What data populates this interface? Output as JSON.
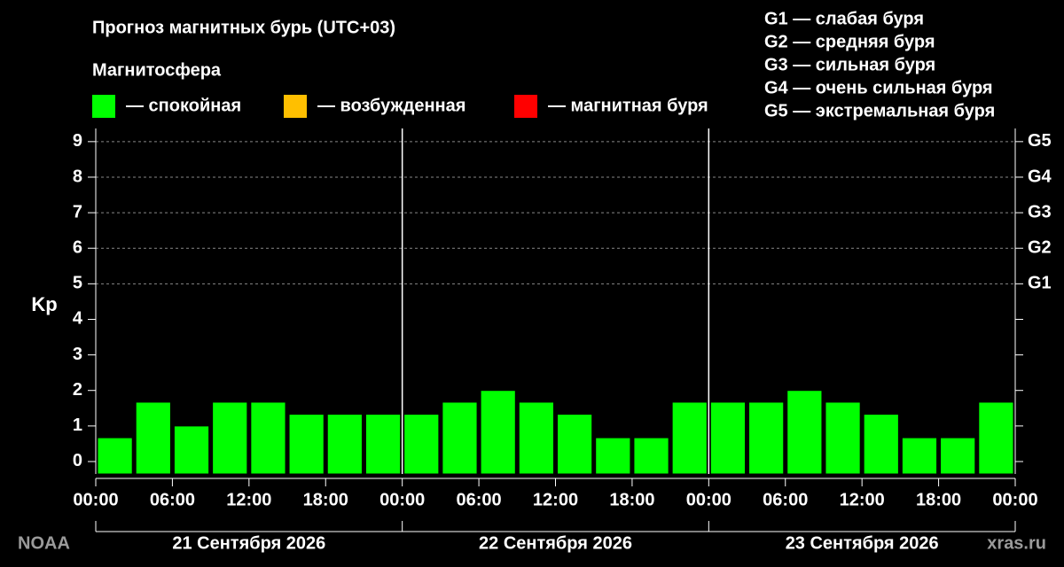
{
  "chart_data": {
    "type": "bar",
    "title": "Прогноз магнитных бурь (UTC+03)",
    "legend_title": "Магнитосфера",
    "legend": [
      {
        "label": "— спокойная",
        "color": "#00ff00"
      },
      {
        "label": "— возбужденная",
        "color": "#ffbf00"
      },
      {
        "label": "— магнитная буря",
        "color": "#ff0000"
      }
    ],
    "g_legend": [
      "G1 — слабая буря",
      "G2 — средняя буря",
      "G3 — сильная буря",
      "G4 — очень сильная буря",
      "G5 — экстремальная буря"
    ],
    "ylabel": "Kp",
    "color": "#00ff00",
    "values": [
      0.67,
      1.67,
      1,
      1.67,
      1.67,
      1.33,
      1.33,
      1.33,
      1.33,
      1.67,
      2,
      1.67,
      1.33,
      0.67,
      0.67,
      1.67,
      1.67,
      1.67,
      2,
      1.67,
      1.33,
      0.67,
      0.67,
      1.67
    ],
    "xlim": [
      0,
      72
    ],
    "xticks": [
      {
        "value": 0,
        "label": "00:00"
      },
      {
        "value": 6,
        "label": "06:00"
      },
      {
        "value": 12,
        "label": "12:00"
      },
      {
        "value": 18,
        "label": "18:00"
      },
      {
        "value": 24,
        "label": "00:00"
      },
      {
        "value": 30,
        "label": "06:00"
      },
      {
        "value": 36,
        "label": "12:00"
      },
      {
        "value": 42,
        "label": "18:00"
      },
      {
        "value": 48,
        "label": "00:00"
      },
      {
        "value": 54,
        "label": "06:00"
      },
      {
        "value": 60,
        "label": "12:00"
      },
      {
        "value": 66,
        "label": "18:00"
      },
      {
        "value": 72,
        "label": "00:00"
      }
    ],
    "days": [
      "21 Сентября 2026",
      "22 Сентября 2026",
      "23 Сентября 2026"
    ],
    "ylim": [
      -0.35,
      9.37
    ],
    "yticks": [
      0,
      1,
      2,
      3,
      4,
      5,
      6,
      7,
      8,
      9
    ],
    "gticks": [
      {
        "value": 5,
        "label": "G1"
      },
      {
        "value": 6,
        "label": "G2"
      },
      {
        "value": 7,
        "label": "G3"
      },
      {
        "value": 8,
        "label": "G4"
      },
      {
        "value": 9,
        "label": "G5"
      }
    ],
    "source_left": "NOAA",
    "source_right": "xras.ru"
  }
}
